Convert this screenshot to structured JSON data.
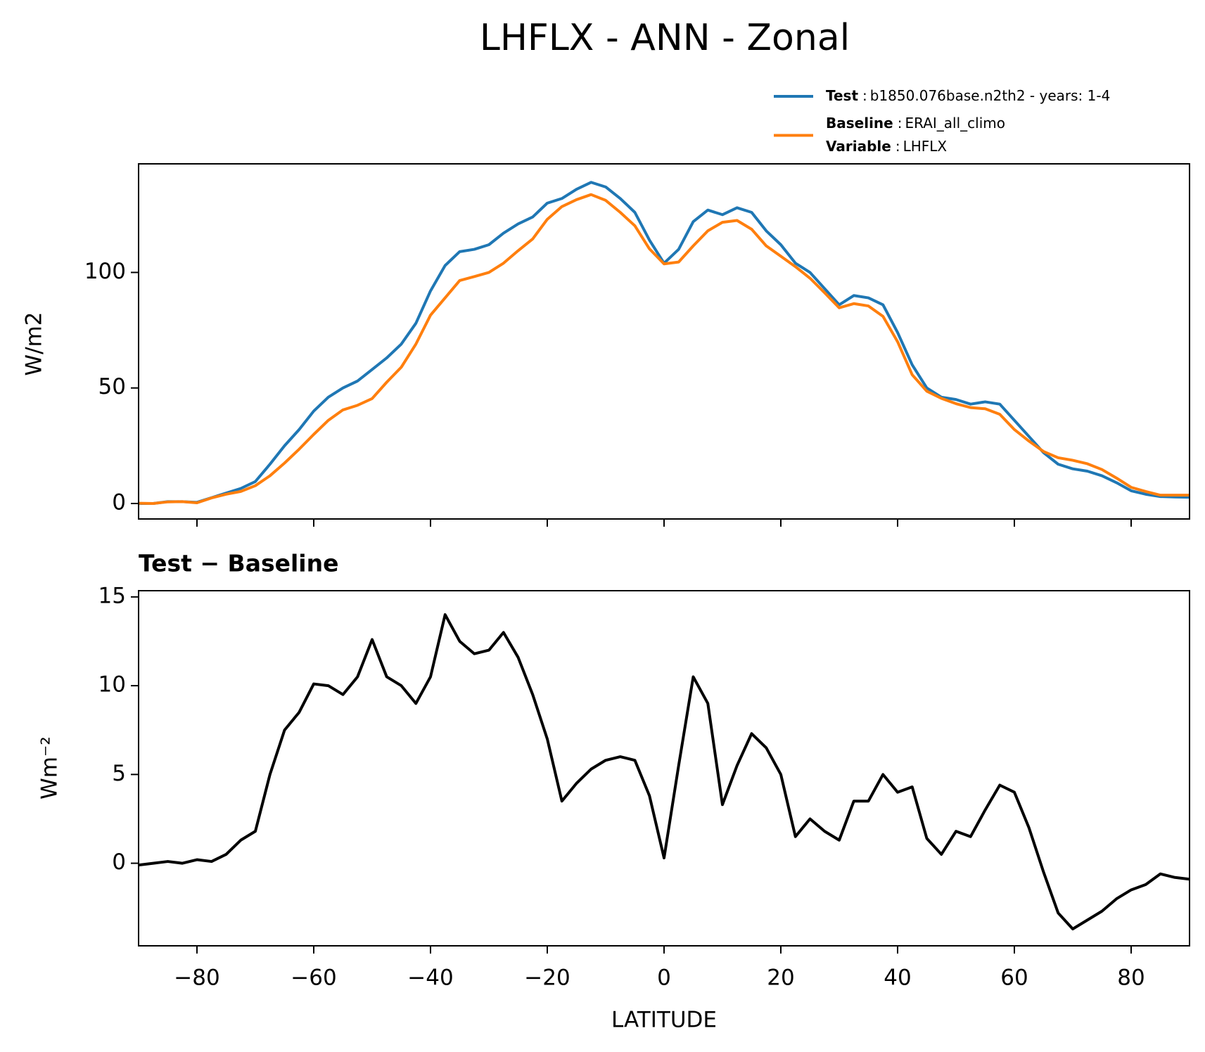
{
  "chart_data": [
    {
      "type": "line",
      "title": "LHFLX - ANN - Zonal",
      "ylabel": "W/m2",
      "x": [
        -90,
        -87.5,
        -85,
        -82.5,
        -80,
        -77.5,
        -75,
        -72.5,
        -70,
        -67.5,
        -65,
        -62.5,
        -60,
        -57.5,
        -55,
        -52.5,
        -50,
        -47.5,
        -45,
        -42.5,
        -40,
        -37.5,
        -35,
        -32.5,
        -30,
        -27.5,
        -25,
        -22.5,
        -20,
        -17.5,
        -15,
        -12.5,
        -10,
        -7.5,
        -5,
        -2.5,
        0,
        2.5,
        5,
        7.5,
        10,
        12.5,
        15,
        17.5,
        20,
        22.5,
        25,
        27.5,
        30,
        32.5,
        35,
        37.5,
        40,
        42.5,
        45,
        47.5,
        50,
        52.5,
        55,
        57.5,
        60,
        62.5,
        65,
        67.5,
        70,
        72.5,
        75,
        77.5,
        80,
        82.5,
        85,
        87.5,
        90
      ],
      "series": [
        {
          "name": "Test",
          "label": "b1850.076base.n2th2 - years: 1-4",
          "color": "#1f77b4",
          "values": [
            0,
            0,
            0.8,
            0.8,
            0.5,
            2.5,
            4.5,
            6.5,
            9.5,
            17,
            25,
            32,
            40,
            46,
            50,
            53,
            58,
            63,
            69,
            78,
            92,
            103,
            109,
            110,
            112,
            117,
            121,
            124,
            130,
            132,
            136,
            139,
            137,
            132,
            126,
            114,
            104,
            110,
            122,
            127,
            125,
            128,
            126,
            118,
            112,
            104,
            100,
            93,
            86,
            90,
            89,
            86,
            74,
            60,
            50,
            46,
            45,
            43,
            44,
            43,
            36,
            29,
            22,
            17,
            15,
            14,
            12,
            9,
            5.5,
            4,
            3,
            2.8,
            2.7
          ]
        },
        {
          "name": "Baseline",
          "label": "ERAI_all_climo",
          "color": "#ff7f0e",
          "values": [
            0.1,
            0,
            0.7,
            0.8,
            0.3,
            2.4,
            4,
            5.2,
            7.7,
            12,
            17.5,
            23.5,
            29.9,
            36,
            40.5,
            42.5,
            45.4,
            52.5,
            59,
            69,
            81.5,
            89,
            96.5,
            98.2,
            100,
            104,
            109.4,
            114.5,
            123,
            128.5,
            131.5,
            133.7,
            131.2,
            126,
            120.2,
            110.2,
            103.7,
            104.5,
            111.5,
            118,
            121.7,
            122.5,
            118.7,
            111.5,
            107,
            102.5,
            97.5,
            91.2,
            84.7,
            86.5,
            85.5,
            81,
            70,
            55.7,
            48.6,
            45.5,
            43.2,
            41.5,
            41,
            38.6,
            32,
            27,
            22.5,
            19.8,
            18.7,
            17.2,
            14.7,
            11,
            7,
            5.2,
            3.6,
            3.6,
            3.6
          ]
        }
      ],
      "variable": {
        "name": "Variable",
        "label": "LHFLX"
      },
      "legend_separator": ":",
      "xlim": [
        -90,
        90
      ],
      "ylim": [
        -6.7,
        147
      ],
      "yticks": [
        0,
        50,
        100
      ]
    },
    {
      "type": "line",
      "title": "Test − Baseline",
      "ylabel": "Wm⁻²",
      "xlabel": "LATITUDE",
      "x": [
        -90,
        -87.5,
        -85,
        -82.5,
        -80,
        -77.5,
        -75,
        -72.5,
        -70,
        -67.5,
        -65,
        -62.5,
        -60,
        -57.5,
        -55,
        -52.5,
        -50,
        -47.5,
        -45,
        -42.5,
        -40,
        -37.5,
        -35,
        -32.5,
        -30,
        -27.5,
        -25,
        -22.5,
        -20,
        -17.5,
        -15,
        -12.5,
        -10,
        -7.5,
        -5,
        -2.5,
        0,
        2.5,
        5,
        7.5,
        10,
        12.5,
        15,
        17.5,
        20,
        22.5,
        25,
        27.5,
        30,
        32.5,
        35,
        37.5,
        40,
        42.5,
        45,
        47.5,
        50,
        52.5,
        55,
        57.5,
        60,
        62.5,
        65,
        67.5,
        70,
        72.5,
        75,
        77.5,
        80,
        82.5,
        85,
        87.5,
        90
      ],
      "color": "#000000",
      "values": [
        -0.1,
        0,
        0.1,
        0,
        0.2,
        0.1,
        0.5,
        1.3,
        1.8,
        5,
        7.5,
        8.5,
        10.1,
        10,
        9.5,
        10.5,
        12.6,
        10.5,
        10,
        9,
        10.5,
        14,
        12.5,
        11.8,
        12,
        13,
        11.6,
        9.5,
        7,
        3.5,
        4.5,
        5.3,
        5.8,
        6,
        5.8,
        3.8,
        0.3,
        5.5,
        10.5,
        9,
        3.3,
        5.5,
        7.3,
        6.5,
        5,
        1.5,
        2.5,
        1.8,
        1.3,
        3.5,
        3.5,
        5,
        4,
        4.3,
        1.4,
        0.5,
        1.8,
        1.5,
        3,
        4.4,
        4,
        2,
        -0.5,
        -2.8,
        -3.7,
        -3.2,
        -2.7,
        -2,
        -1.5,
        -1.2,
        -0.6,
        -0.8,
        -0.9
      ],
      "xlim": [
        -90,
        90
      ],
      "ylim": [
        -4.65,
        15.35
      ],
      "xticks": [
        {
          "value": -80,
          "label": "−80"
        },
        {
          "value": -60,
          "label": "−60"
        },
        {
          "value": -40,
          "label": "−40"
        },
        {
          "value": -20,
          "label": "−20"
        },
        0,
        20,
        40,
        60,
        80
      ],
      "yticks": [
        0,
        5,
        10,
        15
      ]
    }
  ]
}
